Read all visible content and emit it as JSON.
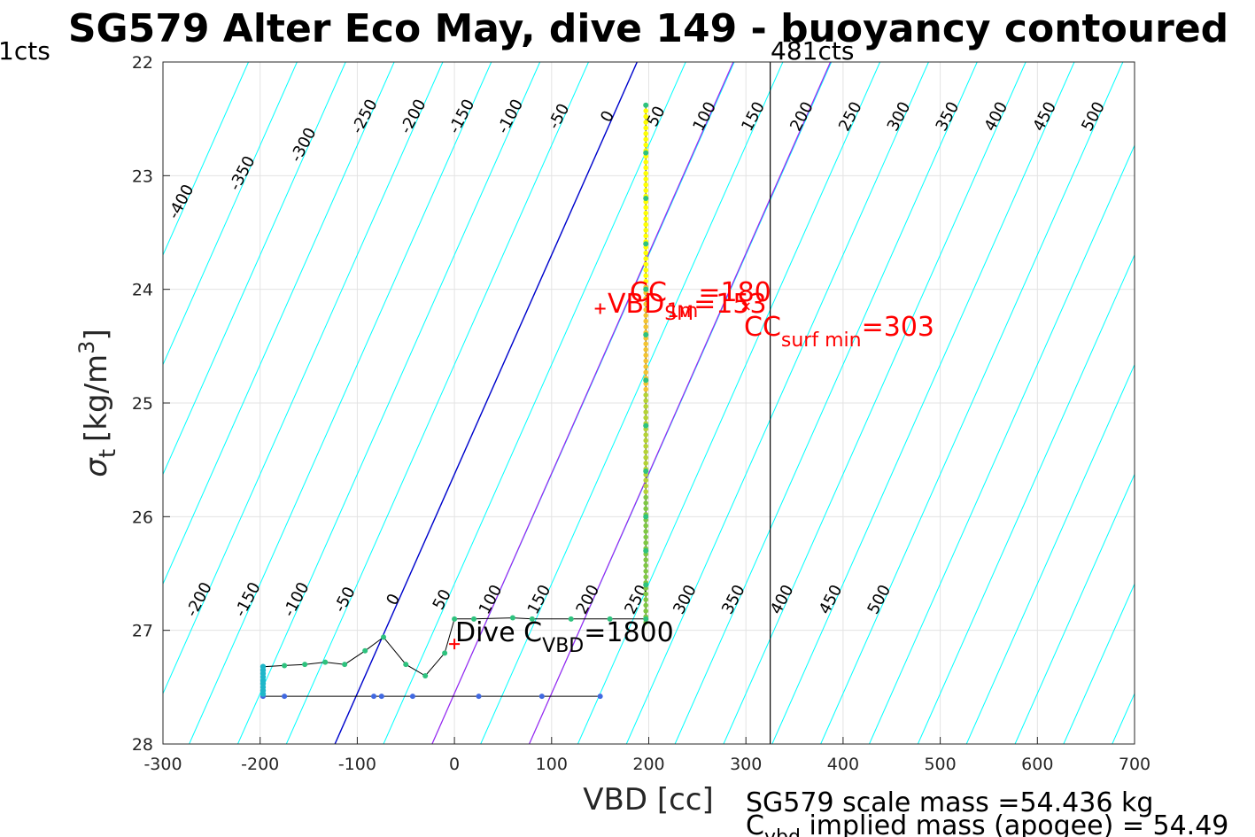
{
  "chart_data": {
    "type": "scatter",
    "title": "SG579 Alter Eco May, dive 149 - buoyancy contoured",
    "xlabel": "VBD [cc]",
    "ylabel_main": "σ",
    "ylabel_sub": "t",
    "ylabel_unit": "[kg/m",
    "ylabel_exp": "3",
    "ylabel_close": "]",
    "xlim": [
      -300,
      700
    ],
    "ylim": [
      22,
      28
    ],
    "y_reversed": true,
    "grid": true,
    "x_ticks": [
      -300,
      -200,
      -100,
      0,
      100,
      200,
      300,
      400,
      500,
      600,
      700
    ],
    "x_tick_labels": [
      "-300",
      "-200",
      "-100",
      "0",
      "100",
      "200",
      "300",
      "400",
      "500",
      "600",
      "700"
    ],
    "y_ticks": [
      22,
      23,
      24,
      25,
      26,
      27,
      28
    ],
    "y_tick_labels": [
      "22",
      "23",
      "24",
      "25",
      "26",
      "27",
      "28"
    ],
    "top_left_label": "1cts",
    "top_right_label": "481cts",
    "vertical_line_x": 325,
    "colors": {
      "cyan": "#00ffff",
      "blue": "#0000cc",
      "purple": "#a020f0",
      "red": "#ff0000",
      "yellow": "#ffff00",
      "green": "#3cb371"
    },
    "contour_labels_upper": [
      "-400",
      "-350",
      "-300",
      "-250",
      "-200",
      "-150",
      "-100",
      "-50",
      "0",
      "50",
      "100",
      "150",
      "200",
      "250",
      "300",
      "350",
      "400",
      "450",
      "500"
    ],
    "contour_labels_lower": [
      "-200",
      "-150",
      "-100",
      "-50",
      "0",
      "50",
      "100",
      "150",
      "200",
      "250",
      "300",
      "350",
      "400",
      "450",
      "500"
    ],
    "cc_label_main": "CC",
    "cc_label_sub": "1m",
    "cc_label_value": "=180",
    "vbd_sm_main": "VBD",
    "vbd_sm_sub": "SM",
    "vbd_sm_value": "=153",
    "cc_surf_main": "CC",
    "cc_surf_sub": "surf min",
    "cc_surf_value": "=303",
    "dive_c_main": "Dive C",
    "dive_c_sub": "VBD",
    "dive_c_value": "=1800",
    "marker_vbd_sm": {
      "x": 150,
      "y": 24.17
    },
    "marker_dive_c": {
      "x": 0,
      "y": 27.12
    },
    "marker_cc1m": {
      "x": 300,
      "y": 24.15
    },
    "profile_points": [
      {
        "x": 197,
        "y": 22.38
      },
      {
        "x": 197,
        "y": 22.8
      },
      {
        "x": 197,
        "y": 23.2
      },
      {
        "x": 197,
        "y": 23.6
      },
      {
        "x": 197,
        "y": 24.0
      },
      {
        "x": 197,
        "y": 24.4
      },
      {
        "x": 197,
        "y": 24.8
      },
      {
        "x": 197,
        "y": 25.2
      },
      {
        "x": 197,
        "y": 25.6
      },
      {
        "x": 197,
        "y": 26.0
      },
      {
        "x": 197,
        "y": 26.3
      },
      {
        "x": 197,
        "y": 26.6
      },
      {
        "x": 197,
        "y": 26.9
      },
      {
        "x": 160,
        "y": 26.9
      },
      {
        "x": 120,
        "y": 26.9
      },
      {
        "x": 80,
        "y": 26.9
      },
      {
        "x": 60,
        "y": 26.89
      },
      {
        "x": 20,
        "y": 26.9
      },
      {
        "x": 0,
        "y": 26.9
      },
      {
        "x": -10,
        "y": 27.2
      },
      {
        "x": -30,
        "y": 27.4
      },
      {
        "x": -50,
        "y": 27.3
      },
      {
        "x": -73,
        "y": 27.06
      },
      {
        "x": -92,
        "y": 27.18
      },
      {
        "x": -113,
        "y": 27.3
      },
      {
        "x": -133,
        "y": 27.28
      },
      {
        "x": -154,
        "y": 27.3
      },
      {
        "x": -175,
        "y": 27.31
      },
      {
        "x": -197,
        "y": 27.32
      },
      {
        "x": -197,
        "y": 27.45
      },
      {
        "x": -197,
        "y": 27.58
      },
      {
        "x": -175,
        "y": 27.58
      },
      {
        "x": -83,
        "y": 27.58
      },
      {
        "x": -75,
        "y": 27.58
      },
      {
        "x": -43,
        "y": 27.58
      },
      {
        "x": 25,
        "y": 27.58
      },
      {
        "x": 90,
        "y": 27.58
      },
      {
        "x": 150,
        "y": 27.58
      }
    ],
    "footer_line1": "SG579 scale mass =54.436 kg",
    "footer_line2_main": "C",
    "footer_line2_sub": "vbd",
    "footer_line2_rest": " implied mass (apogee) = 54.49"
  }
}
